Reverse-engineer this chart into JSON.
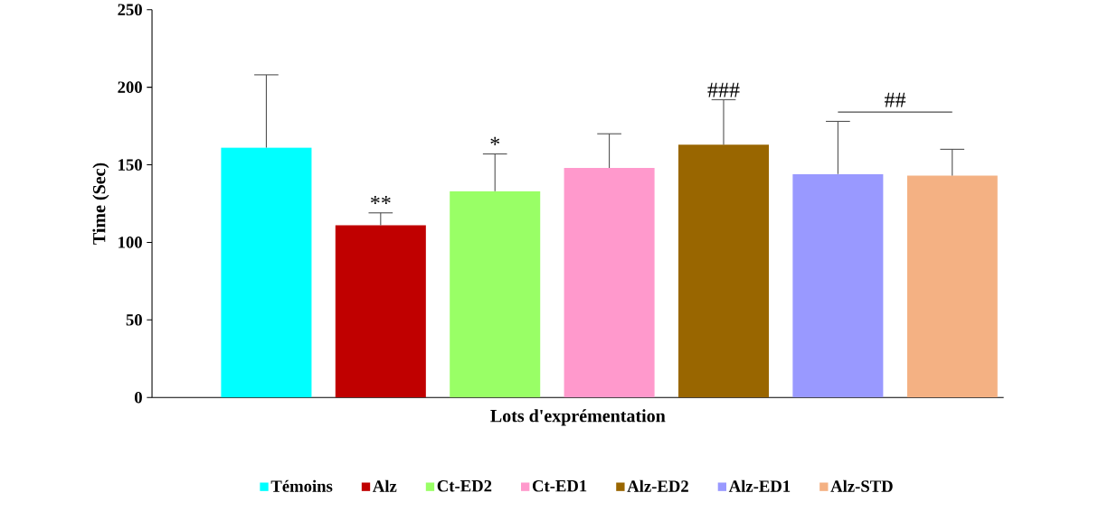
{
  "chart_data": {
    "type": "bar",
    "xlabel": "Lots d'exprémentation",
    "ylabel": "Time (Sec)",
    "categories": [
      null,
      null,
      null,
      null,
      null,
      null,
      null
    ],
    "series": [
      {
        "name": "Témoins",
        "color": "#00ffff",
        "values": [
          161,
          null,
          null,
          null,
          null,
          null,
          null
        ],
        "errors": [
          [
            161,
            208
          ],
          null,
          null,
          null,
          null,
          null,
          null
        ]
      },
      {
        "name": "Alz",
        "color": "#c00000",
        "values": [
          null,
          111,
          null,
          null,
          null,
          null,
          null
        ],
        "errors": [
          null,
          [
            111,
            119
          ],
          null,
          null,
          null,
          null,
          null
        ]
      },
      {
        "name": "Ct-ED2",
        "color": "#99ff66",
        "values": [
          null,
          null,
          133,
          null,
          null,
          null,
          null
        ],
        "errors": [
          null,
          null,
          [
            133,
            157
          ],
          null,
          null,
          null,
          null
        ]
      },
      {
        "name": "Ct-ED1",
        "color": "#ff99cc",
        "values": [
          null,
          null,
          null,
          148,
          null,
          null,
          null
        ],
        "errors": [
          null,
          null,
          null,
          [
            148,
            170
          ],
          null,
          null,
          null
        ]
      },
      {
        "name": "Alz-ED2",
        "color": "#996600",
        "values": [
          null,
          null,
          null,
          null,
          163,
          null,
          null
        ],
        "errors": [
          null,
          null,
          null,
          null,
          [
            163,
            192
          ],
          null,
          null
        ]
      },
      {
        "name": "Alz-ED1",
        "color": "#9999ff",
        "values": [
          null,
          null,
          null,
          null,
          null,
          144,
          null
        ],
        "errors": [
          null,
          null,
          null,
          null,
          null,
          [
            144,
            178
          ],
          null
        ]
      },
      {
        "name": "Alz-STD",
        "color": "#f4b183",
        "values": [
          null,
          null,
          null,
          null,
          null,
          null,
          143
        ],
        "errors": [
          null,
          null,
          null,
          null,
          null,
          null,
          [
            143,
            160
          ]
        ]
      }
    ],
    "annotations": [
      {
        "text": "**",
        "y": 119
      },
      {
        "text": "*",
        "y": 157
      },
      {
        "text": "###",
        "y": 192
      },
      "##"
    ],
    "ylim": [
      0,
      250
    ],
    "yticks": [
      0,
      50,
      100,
      150,
      200,
      250
    ],
    "grid": false,
    "legend": "bottom"
  }
}
